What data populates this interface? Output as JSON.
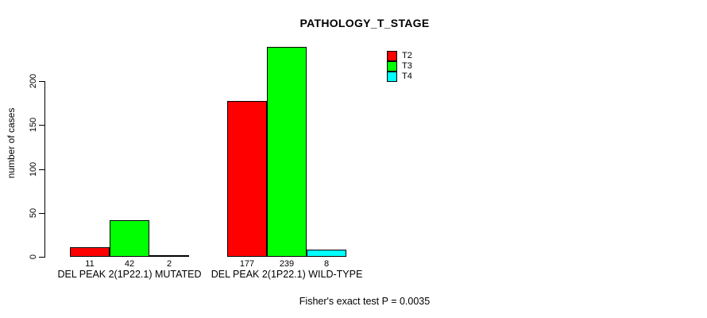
{
  "chart_data": {
    "type": "bar",
    "title": "PATHOLOGY_T_STAGE",
    "ylabel": "number of cases",
    "categories": [
      "DEL PEAK 2(1P22.1) MUTATED",
      "DEL PEAK 2(1P22.1) WILD-TYPE"
    ],
    "series": [
      {
        "name": "T2",
        "color": "#ff0000",
        "values": [
          11,
          177
        ]
      },
      {
        "name": "T3",
        "color": "#00ff00",
        "values": [
          42,
          239
        ]
      },
      {
        "name": "T4",
        "color": "#00ffff",
        "values": [
          2,
          8
        ]
      }
    ],
    "yticks": [
      0,
      50,
      100,
      150,
      200
    ],
    "ylim": [
      0,
      240
    ],
    "grid": false,
    "legend_position": "top-right",
    "bar_value_labels_shown": true,
    "annotation": "Fisher's exact test P = 0.0035"
  },
  "colors": {
    "axis": "#000000",
    "background": "#ffffff",
    "bar_border": "#000000"
  }
}
